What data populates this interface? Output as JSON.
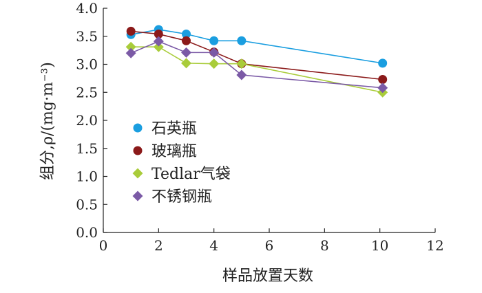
{
  "chart_data": {
    "type": "line",
    "title": "",
    "xlabel": "样品放置天数",
    "ylabel": "组分,ρ/(mg·m⁻³)",
    "xlim": [
      0,
      12
    ],
    "ylim": [
      0,
      4.0
    ],
    "xticks": [
      0,
      2,
      4,
      6,
      8,
      10,
      12
    ],
    "yticks": [
      "0.0",
      "0.5",
      "1.0",
      "1.5",
      "2.0",
      "2.5",
      "3.0",
      "3.5",
      "4.0"
    ],
    "grid": false,
    "legend": "left-middle",
    "series": [
      {
        "name": "石英瓶",
        "color": "#1a9ee0",
        "marker": "circle",
        "x": [
          1,
          2,
          3,
          4,
          5,
          10.1
        ],
        "y": [
          3.53,
          3.62,
          3.54,
          3.42,
          3.42,
          3.02
        ]
      },
      {
        "name": "玻璃瓶",
        "color": "#8b1a1a",
        "marker": "circle",
        "x": [
          1,
          2,
          3,
          4,
          5,
          10.1
        ],
        "y": [
          3.59,
          3.54,
          3.42,
          3.22,
          3.01,
          2.73
        ]
      },
      {
        "name": "Tedlar气袋",
        "color": "#a9cc3a",
        "marker": "diamond",
        "x": [
          1,
          2,
          3,
          4,
          5,
          10.1
        ],
        "y": [
          3.31,
          3.31,
          3.02,
          3.01,
          3.01,
          2.5
        ]
      },
      {
        "name": "不锈钢瓶",
        "color": "#7b5aa6",
        "marker": "diamond",
        "x": [
          1,
          2,
          3,
          4,
          5,
          10.1
        ],
        "y": [
          3.2,
          3.41,
          3.21,
          3.21,
          2.81,
          2.58
        ]
      }
    ]
  }
}
